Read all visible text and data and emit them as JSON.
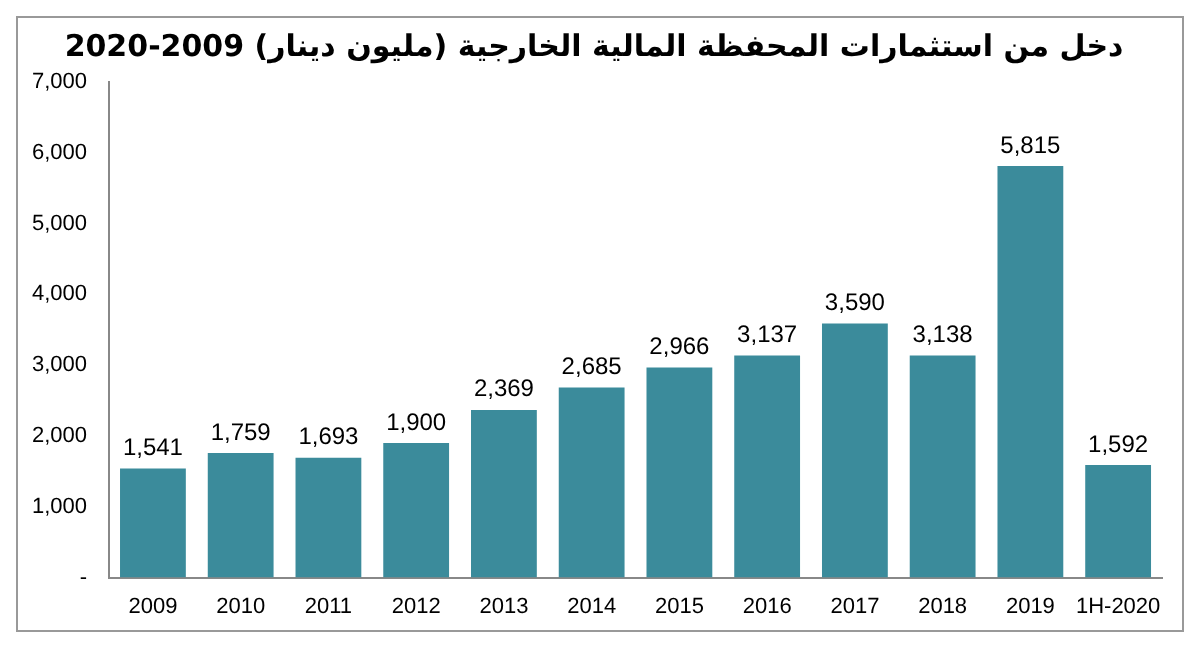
{
  "chart_data": {
    "type": "bar",
    "title": "دخل من استثمارات المحفظة المالية الخارجية (مليون دينار) 2009-2020",
    "categories": [
      "2009",
      "2010",
      "2011",
      "2012",
      "2013",
      "2014",
      "2015",
      "2016",
      "2017",
      "2018",
      "2019",
      "1H-2020"
    ],
    "values": [
      1541,
      1759,
      1693,
      1900,
      2369,
      2685,
      2966,
      3137,
      3590,
      3138,
      5815,
      1592
    ],
    "value_labels": [
      "1,541",
      "1,759",
      "1,693",
      "1,900",
      "2,369",
      "2,685",
      "2,966",
      "3,137",
      "3,590",
      "3,138",
      "5,815",
      "1,592"
    ],
    "color": "#3b8b9b",
    "ylim": [
      0,
      7000
    ],
    "yticks": [
      {
        "value": 0,
        "label": "-"
      },
      {
        "value": 1000,
        "label": "1,000"
      },
      {
        "value": 2000,
        "label": "2,000"
      },
      {
        "value": 3000,
        "label": "3,000"
      },
      {
        "value": 4000,
        "label": "4,000"
      },
      {
        "value": 5000,
        "label": "5,000"
      },
      {
        "value": 6000,
        "label": "6,000"
      },
      {
        "value": 7000,
        "label": "7,000"
      }
    ],
    "grid": false,
    "legend": false
  }
}
